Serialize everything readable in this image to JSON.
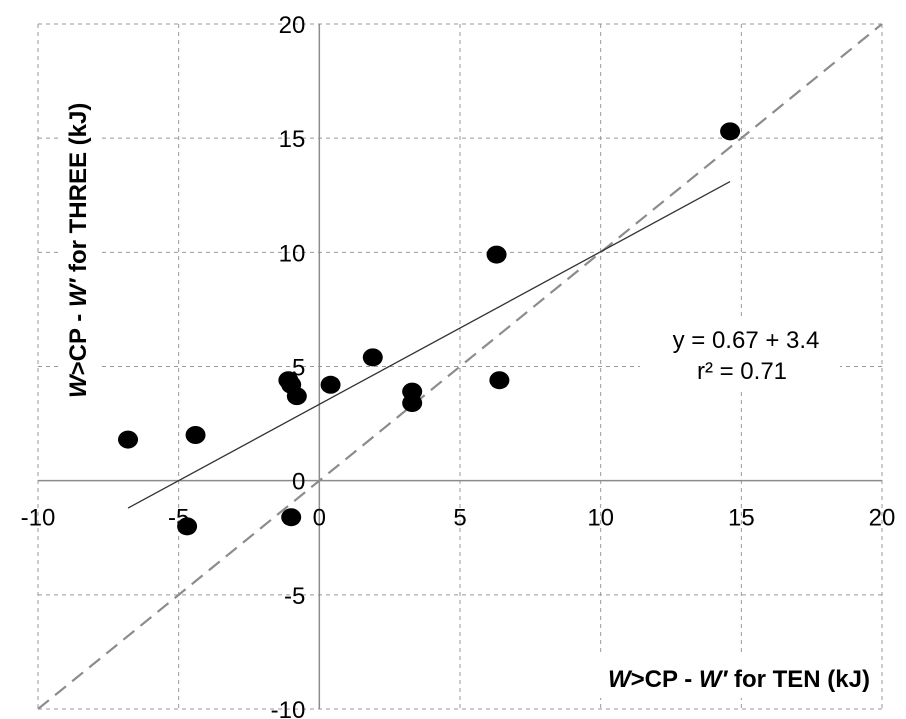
{
  "chart_data": {
    "type": "scatter",
    "title": "",
    "xlabel": {
      "w": "W",
      "rest": ">CP - ",
      "wprime": "W′",
      "tail": " for TEN (kJ)"
    },
    "ylabel": {
      "w": "W",
      "rest": ">CP - ",
      "wprime": "W′",
      "tail": " for THREE (kJ)"
    },
    "xlim": [
      -10,
      20
    ],
    "ylim": [
      -10,
      20
    ],
    "x_ticks": [
      -10,
      -5,
      0,
      5,
      10,
      15,
      20
    ],
    "y_ticks": [
      -10,
      -5,
      0,
      5,
      10,
      15,
      20
    ],
    "x_tick_labels": [
      "-10",
      "-5",
      "0",
      "5",
      "10",
      "15",
      "20"
    ],
    "y_tick_labels": [
      "-10",
      "-5",
      "0",
      "5",
      "10",
      "15",
      "20"
    ],
    "grid": true,
    "points": [
      {
        "x": -6.8,
        "y": 1.8
      },
      {
        "x": -4.4,
        "y": 2.0
      },
      {
        "x": -4.7,
        "y": -2.0
      },
      {
        "x": -1.1,
        "y": 4.4
      },
      {
        "x": -1.0,
        "y": 4.2
      },
      {
        "x": -0.8,
        "y": 3.7
      },
      {
        "x": -1.0,
        "y": -1.6
      },
      {
        "x": 0.4,
        "y": 4.2
      },
      {
        "x": 1.9,
        "y": 5.4
      },
      {
        "x": 3.3,
        "y": 3.9
      },
      {
        "x": 3.3,
        "y": 3.4
      },
      {
        "x": 6.3,
        "y": 9.9
      },
      {
        "x": 6.4,
        "y": 4.4
      },
      {
        "x": 14.6,
        "y": 15.3
      }
    ],
    "regression_line": {
      "x": [
        -6.8,
        14.6
      ],
      "y": [
        -1.2,
        13.1
      ]
    },
    "identity_line": {
      "x": [
        -10,
        20
      ],
      "y": [
        -10,
        20
      ]
    },
    "equation": {
      "line1": "y = 0.67 + 3.4",
      "line2": "r² = 0.71"
    },
    "colors": {
      "points": "#000000",
      "grid": "#999999",
      "axis": "#8c8c8c",
      "regression": "#333333",
      "identity": "#8c8c8c"
    }
  }
}
